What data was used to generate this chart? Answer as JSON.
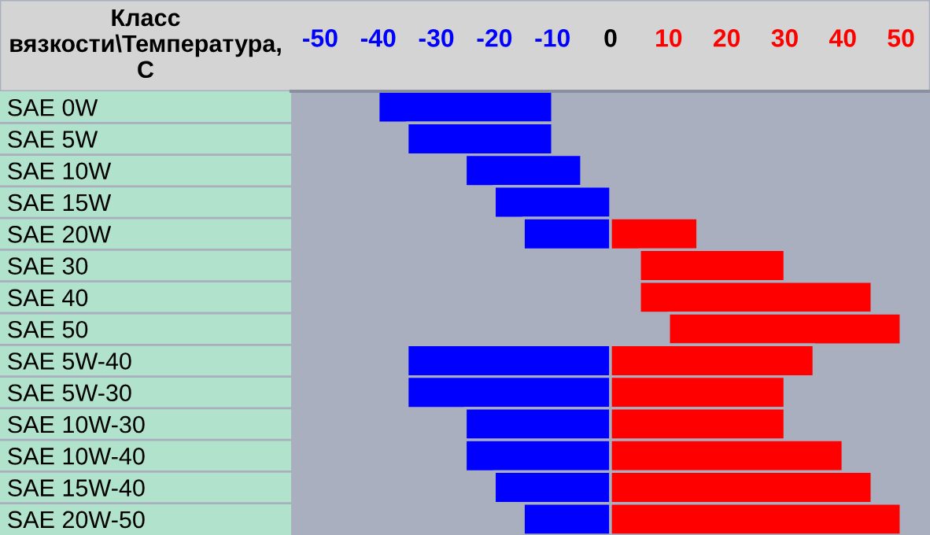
{
  "chart_data": {
    "type": "bar",
    "orientation": "horizontal",
    "stacked": false,
    "ylabel": "Класс вязкости\\Температура, С",
    "categories": [
      "SAE 0W",
      "SAE 5W",
      "SAE 10W",
      "SAE 15W",
      "SAE 20W",
      "SAE 30",
      "SAE 40",
      "SAE 50",
      "SAE 5W-40",
      "SAE 5W-30",
      "SAE 10W-30",
      "SAE 10W-40",
      "SAE 15W-40",
      "SAE 20W-50"
    ],
    "series": [
      {
        "color": "#0000ff",
        "base": [
          -40,
          -35,
          -25,
          -20,
          -15,
          null,
          null,
          null,
          -35,
          -35,
          -25,
          -25,
          -20,
          -15
        ],
        "values": [
          30,
          25,
          20,
          20,
          15,
          null,
          null,
          null,
          35,
          35,
          25,
          25,
          20,
          15
        ]
      },
      {
        "color": "#ff0000",
        "base": [
          null,
          null,
          null,
          null,
          0,
          5,
          5,
          10,
          0,
          0,
          0,
          0,
          0,
          0
        ],
        "values": [
          null,
          null,
          null,
          null,
          15,
          25,
          40,
          40,
          35,
          30,
          30,
          40,
          45,
          50
        ]
      }
    ],
    "xlim": [
      -55,
      55
    ],
    "xticks": [
      -50,
      -40,
      -30,
      -20,
      -10,
      0,
      10,
      20,
      30,
      40,
      50
    ],
    "grid": false,
    "legend": false
  }
}
